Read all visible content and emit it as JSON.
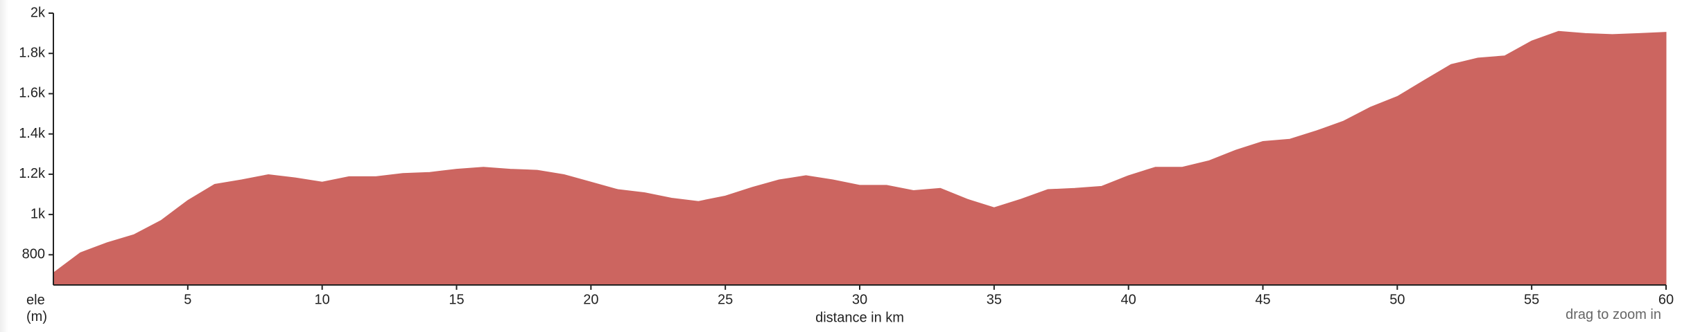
{
  "chart_data": {
    "type": "area",
    "x": [
      0,
      1,
      2,
      3,
      4,
      5,
      6,
      7,
      8,
      9,
      10,
      11,
      12,
      13,
      14,
      15,
      16,
      17,
      18,
      19,
      20,
      21,
      22,
      23,
      24,
      25,
      26,
      27,
      28,
      29,
      30,
      31,
      32,
      33,
      34,
      35,
      36,
      37,
      38,
      39,
      40,
      41,
      42,
      43,
      44,
      45,
      46,
      47,
      48,
      49,
      50,
      51,
      52,
      53,
      54,
      55,
      56,
      57,
      58,
      59,
      60
    ],
    "series": [
      {
        "color": "#cc6560",
        "values": [
          710,
          810,
          860,
          900,
          970,
          1070,
          1150,
          1172,
          1198,
          1182,
          1161,
          1188,
          1188,
          1204,
          1209,
          1225,
          1235,
          1225,
          1220,
          1198,
          1161,
          1124,
          1108,
          1081,
          1065,
          1092,
          1135,
          1172,
          1193,
          1172,
          1145,
          1145,
          1119,
          1130,
          1076,
          1034,
          1076,
          1124,
          1130,
          1140,
          1193,
          1235,
          1235,
          1267,
          1320,
          1363,
          1374,
          1416,
          1464,
          1533,
          1586,
          1666,
          1745,
          1777,
          1788,
          1862,
          1910,
          1899,
          1894,
          1899,
          1905
        ]
      }
    ],
    "xlim": [
      0,
      60
    ],
    "xticks": [
      5,
      10,
      15,
      20,
      25,
      30,
      35,
      40,
      45,
      50,
      55,
      60
    ],
    "ylim": [
      650,
      2000
    ],
    "yticks": [
      {
        "value": 800,
        "label": "800"
      },
      {
        "value": 1000,
        "label": "1k"
      },
      {
        "value": 1200,
        "label": "1.2k"
      },
      {
        "value": 1400,
        "label": "1.4k"
      },
      {
        "value": 1600,
        "label": "1.6k"
      },
      {
        "value": 1800,
        "label": "1.8k"
      },
      {
        "value": 2000,
        "label": "2k"
      }
    ],
    "x_label": "distance in km",
    "y_label": "ele (m)",
    "annotation": "drag to zoom in"
  }
}
